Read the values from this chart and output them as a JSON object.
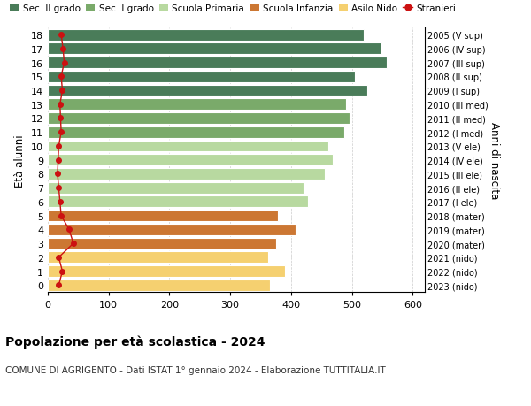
{
  "ages": [
    18,
    17,
    16,
    15,
    14,
    13,
    12,
    11,
    10,
    9,
    8,
    7,
    6,
    5,
    4,
    3,
    2,
    1,
    0
  ],
  "years": [
    "2005 (V sup)",
    "2006 (IV sup)",
    "2007 (III sup)",
    "2008 (II sup)",
    "2009 (I sup)",
    "2010 (III med)",
    "2011 (II med)",
    "2012 (I med)",
    "2013 (V ele)",
    "2014 (IV ele)",
    "2015 (III ele)",
    "2016 (II ele)",
    "2017 (I ele)",
    "2018 (mater)",
    "2019 (mater)",
    "2020 (mater)",
    "2021 (nido)",
    "2022 (nido)",
    "2023 (nido)"
  ],
  "bar_values": [
    520,
    548,
    558,
    505,
    525,
    490,
    496,
    488,
    462,
    468,
    455,
    420,
    428,
    378,
    408,
    375,
    362,
    390,
    365
  ],
  "stranieri_values": [
    22,
    25,
    27,
    22,
    24,
    20,
    21,
    22,
    18,
    17,
    16,
    18,
    20,
    22,
    35,
    42,
    18,
    24,
    18
  ],
  "bar_colors": [
    "#4a7c59",
    "#4a7c59",
    "#4a7c59",
    "#4a7c59",
    "#4a7c59",
    "#7aaa6a",
    "#7aaa6a",
    "#7aaa6a",
    "#b8d9a0",
    "#b8d9a0",
    "#b8d9a0",
    "#b8d9a0",
    "#b8d9a0",
    "#cc7733",
    "#cc7733",
    "#cc7733",
    "#f5d070",
    "#f5d070",
    "#f5d070"
  ],
  "legend_labels": [
    "Sec. II grado",
    "Sec. I grado",
    "Scuola Primaria",
    "Scuola Infanzia",
    "Asilo Nido",
    "Stranieri"
  ],
  "legend_colors_list": [
    "#4a7c59",
    "#7aaa6a",
    "#b8d9a0",
    "#cc7733",
    "#f5d070",
    "#cc1111"
  ],
  "ylabel": "Età alunni",
  "right_ylabel": "Anni di nascita",
  "title": "Popolazione per età scolastica - 2024",
  "subtitle": "COMUNE DI AGRIGENTO - Dati ISTAT 1° gennaio 2024 - Elaborazione TUTTITALIA.IT",
  "xlim": [
    0,
    620
  ],
  "xticks": [
    0,
    100,
    200,
    300,
    400,
    500,
    600
  ],
  "bar_height": 0.82,
  "stranieri_color": "#cc1111"
}
